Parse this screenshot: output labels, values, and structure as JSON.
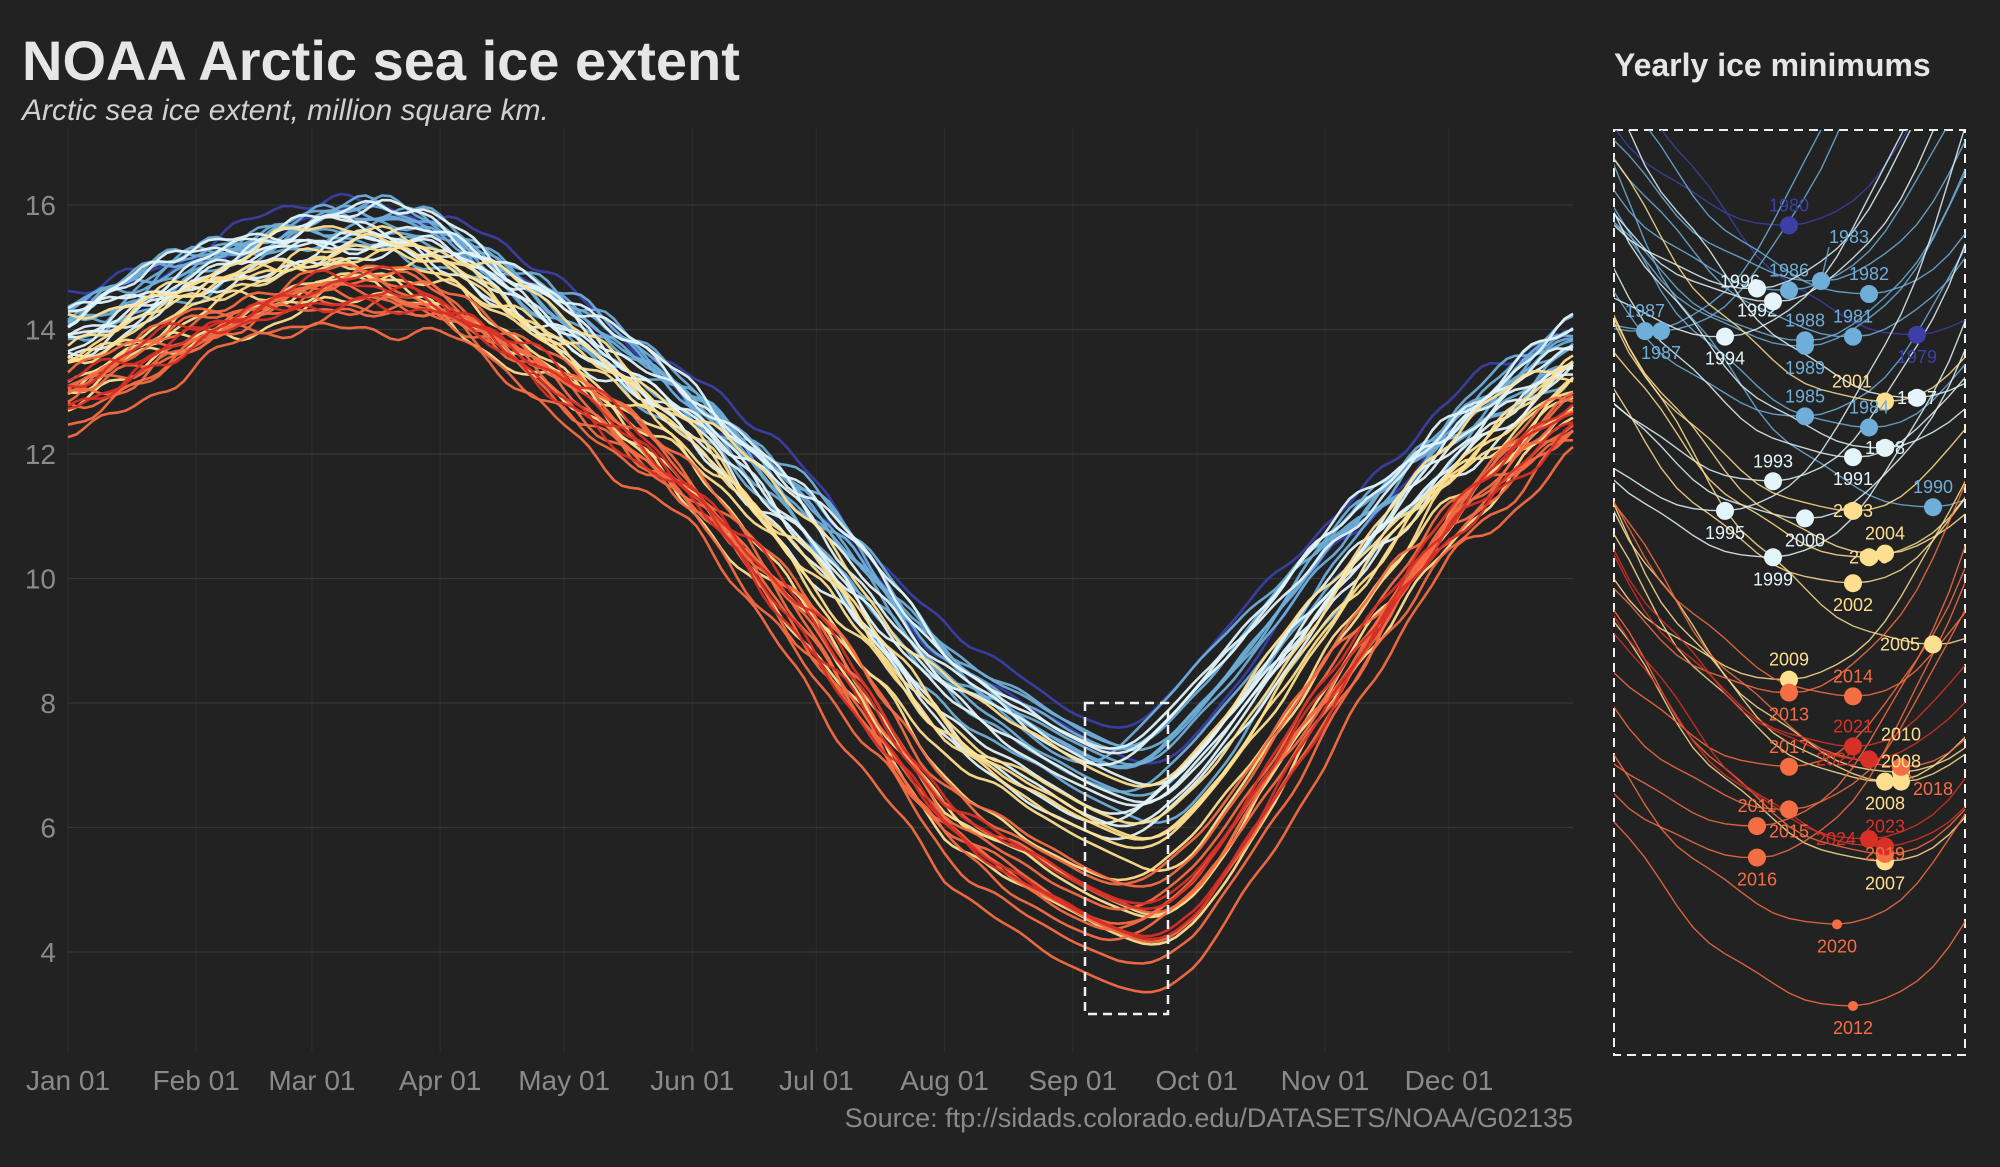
{
  "chart_data": {
    "type": "line",
    "title": "NOAA Arctic sea ice extent",
    "subtitle": "Arctic sea ice extent, million square km.",
    "source": "Source: ftp://sidads.colorado.edu/DATASETS/NOAA/G02135",
    "inset_title": "Yearly ice minimums",
    "xlabel": "",
    "ylabel": "",
    "ylim": [
      2.6,
      17.3
    ],
    "yticks": [
      4,
      6,
      8,
      10,
      12,
      14,
      16
    ],
    "xticks": [
      {
        "label": "Jan 01",
        "day": 1
      },
      {
        "label": "Feb 01",
        "day": 32
      },
      {
        "label": "Mar 01",
        "day": 60
      },
      {
        "label": "Apr 01",
        "day": 91
      },
      {
        "label": "May 01",
        "day": 121
      },
      {
        "label": "Jun 01",
        "day": 152
      },
      {
        "label": "Jul 01",
        "day": 182
      },
      {
        "label": "Aug 01",
        "day": 213
      },
      {
        "label": "Sep 01",
        "day": 244
      },
      {
        "label": "Oct 01",
        "day": 274
      },
      {
        "label": "Nov 01",
        "day": 305
      },
      {
        "label": "Dec 01",
        "day": 335
      }
    ],
    "grid": true,
    "highlight_window": {
      "from": "Sep 05",
      "to": "Sep 25",
      "ymin": 3,
      "ymax": 8
    },
    "colors": {
      "background": "#222222",
      "1979-1980": "#3b3fa6",
      "1981-1990": "#6faed8",
      "1991-2000": "#e3f4fa",
      "2001-2010": "#fedf8f",
      "2011-2020": "#f46d43",
      "2021-2024": "#d73027"
    },
    "series": [
      {
        "name": "1979",
        "min": 6.89,
        "min_date": "Sep 23",
        "label": "below"
      },
      {
        "name": "1980",
        "min": 7.48,
        "min_date": "Sep 15",
        "label": "above"
      },
      {
        "name": "1981",
        "min": 6.88,
        "min_date": "Sep 19",
        "label": "above"
      },
      {
        "name": "1982",
        "min": 7.11,
        "min_date": "Sep 20",
        "label": "above"
      },
      {
        "name": "1983",
        "min": 7.18,
        "min_date": "Sep 17",
        "label": "leader"
      },
      {
        "name": "1984",
        "min": 6.39,
        "min_date": "Sep 20",
        "label": "above"
      },
      {
        "name": "1985",
        "min": 6.45,
        "min_date": "Sep 16",
        "label": "above"
      },
      {
        "name": "1986",
        "min": 7.13,
        "min_date": "Sep 15",
        "label": "above"
      },
      {
        "name": "1987",
        "min": 6.91,
        "min_date": "Sep 06",
        "label": "above"
      },
      {
        "name": "1987",
        "min": 6.91,
        "min_date": "Sep 07",
        "label": "below"
      },
      {
        "name": "1988",
        "min": 6.86,
        "min_date": "Sep 16",
        "label": "above"
      },
      {
        "name": "1989",
        "min": 6.83,
        "min_date": "Sep 16",
        "label": "below"
      },
      {
        "name": "1990",
        "min": 5.96,
        "min_date": "Sep 24",
        "label": "above"
      },
      {
        "name": "1991",
        "min": 6.23,
        "min_date": "Sep 19",
        "label": "below"
      },
      {
        "name": "1992",
        "min": 7.14,
        "min_date": "Sep 13",
        "label": "above"
      },
      {
        "name": "1993",
        "min": 6.1,
        "min_date": "Sep 14",
        "label": "above"
      },
      {
        "name": "1994",
        "min": 6.88,
        "min_date": "Sep 11",
        "label": "below"
      },
      {
        "name": "1995",
        "min": 5.94,
        "min_date": "Sep 11",
        "label": "below"
      },
      {
        "name": "1996",
        "min": 7.07,
        "min_date": "Sep 14",
        "label": "left"
      },
      {
        "name": "1997",
        "min": 6.55,
        "min_date": "Sep 23",
        "label": "above"
      },
      {
        "name": "1998",
        "min": 6.28,
        "min_date": "Sep 21",
        "label": "below"
      },
      {
        "name": "1999",
        "min": 5.69,
        "min_date": "Sep 14",
        "label": "below"
      },
      {
        "name": "2000",
        "min": 5.9,
        "min_date": "Sep 16",
        "label": "below"
      },
      {
        "name": "2001",
        "min": 6.53,
        "min_date": "Sep 21",
        "label": "above"
      },
      {
        "name": "2002",
        "min": 5.55,
        "min_date": "Sep 19",
        "label": "below"
      },
      {
        "name": "2003",
        "min": 5.94,
        "min_date": "Sep 19",
        "label": "above"
      },
      {
        "name": "2004",
        "min": 5.71,
        "min_date": "Sep 21",
        "label": "above"
      },
      {
        "name": "2005",
        "min": 5.22,
        "min_date": "Sep 24",
        "label": "left"
      },
      {
        "name": "2006",
        "min": 5.69,
        "min_date": "Sep 20",
        "label": "above"
      },
      {
        "name": "2007",
        "min": 4.05,
        "min_date": "Sep 21",
        "label": "below"
      },
      {
        "name": "2008",
        "min": 4.48,
        "min_date": "Sep 21",
        "label": "below"
      },
      {
        "name": "2008",
        "min": 4.48,
        "min_date": "Sep 22",
        "label": "below"
      },
      {
        "name": "2009",
        "min": 5.03,
        "min_date": "Sep 15",
        "label": "above"
      },
      {
        "name": "2010",
        "min": 4.53,
        "min_date": "Sep 22",
        "label": "right"
      },
      {
        "name": "2011",
        "min": 4.24,
        "min_date": "Sep 13",
        "label": "above"
      },
      {
        "name": "2012",
        "min": 3.27,
        "min_date": "Sep 19",
        "label": "below",
        "dot": "small"
      },
      {
        "name": "2013",
        "min": 4.96,
        "min_date": "Sep 15",
        "label": "below"
      },
      {
        "name": "2014",
        "min": 4.94,
        "min_date": "Sep 19",
        "label": "above"
      },
      {
        "name": "2015",
        "min": 4.33,
        "min_date": "Sep 15",
        "label": "above"
      },
      {
        "name": "2016",
        "min": 4.07,
        "min_date": "Sep 13",
        "label": "below"
      },
      {
        "name": "2017",
        "min": 4.56,
        "min_date": "Sep 15",
        "label": "above"
      },
      {
        "name": "2018",
        "min": 4.56,
        "min_date": "Sep 22",
        "label": "leader"
      },
      {
        "name": "2019",
        "min": 4.09,
        "min_date": "Sep 21",
        "label": "below"
      },
      {
        "name": "2020",
        "min": 3.71,
        "min_date": "Sep 18",
        "label": "below",
        "dot": "small"
      },
      {
        "name": "2021",
        "min": 4.67,
        "min_date": "Sep 19",
        "label": "above"
      },
      {
        "name": "2022",
        "min": 4.6,
        "min_date": "Sep 20",
        "label": "right"
      },
      {
        "name": "2023",
        "min": 4.13,
        "min_date": "Sep 21",
        "label": "above"
      },
      {
        "name": "2024",
        "min": 4.17,
        "min_date": "Sep 20",
        "label": "above"
      }
    ]
  }
}
